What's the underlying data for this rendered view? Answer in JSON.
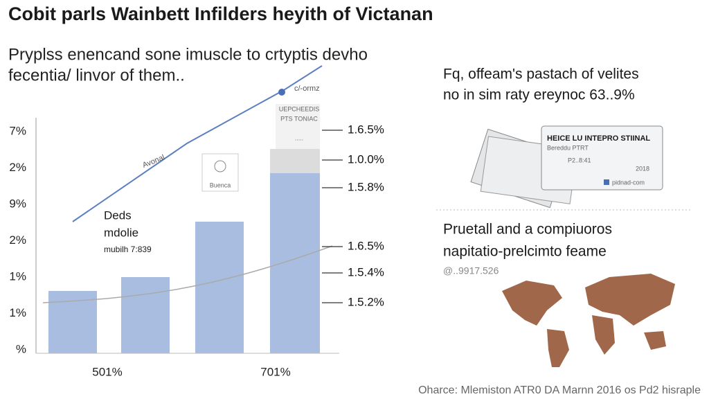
{
  "title": "Cobit parls Wainbett Infilders heyith of Victanan",
  "subtitle": [
    "Pryplss enencand sone imuscle to crtyptis devho",
    "fecentia/ linvor of them.."
  ],
  "left_axis": [
    "7%",
    "2%",
    "9%",
    "2%",
    "1%",
    "1%",
    "%"
  ],
  "right_labels": [
    "1.6.5%",
    "1.0.0%",
    "1.5.8%",
    "1.6.5%",
    "1.5.4%",
    "1.5.2%"
  ],
  "x_labels": [
    "501%",
    "701%"
  ],
  "line_label": "Avonal",
  "point_label": "c/-ormz",
  "note": [
    "Deds",
    "mdolie",
    "mubilh 7:839"
  ],
  "box_label": "Buenca",
  "bar_caption": [
    "UEPCHEEDIS",
    "PTS TONIAC",
    "....."
  ],
  "section1": {
    "lines": [
      "Fq, offeam's pastach of velites",
      "no in sim raty ereynoc 63..9%"
    ],
    "card": {
      "header": "HEICE LU INTEPRO STIINAL",
      "line1": "Bereddu PTRT",
      "line2": "P2..8:41",
      "year": "2018",
      "site": "pidnad-com"
    }
  },
  "section2": {
    "lines": [
      "Pruetall and a compiuoros",
      "napitatio-prelcimto feame"
    ],
    "code": "@..9917.526"
  },
  "footer": "Oharce: Mlemiston ATR0 DA Marnn 2016 os Pd2 hisraple"
}
